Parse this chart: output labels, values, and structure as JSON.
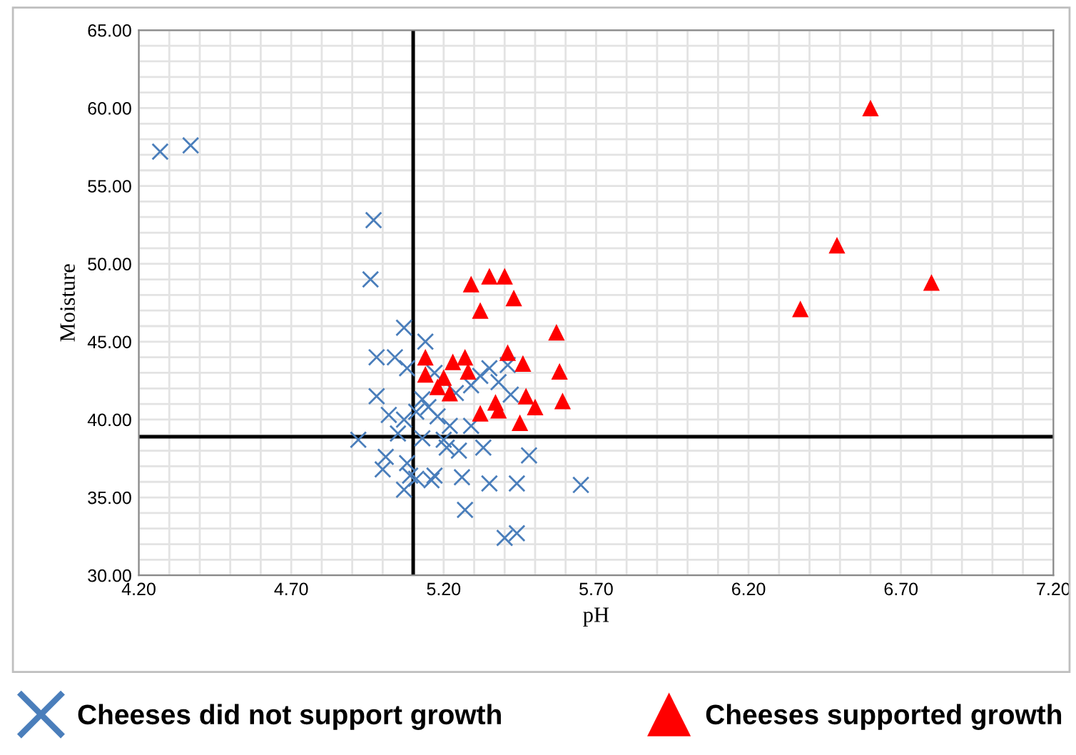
{
  "chart_data": {
    "type": "scatter",
    "xlabel": "pH",
    "ylabel": "Moisture",
    "xlim": [
      4.2,
      7.2
    ],
    "ylim": [
      30,
      65
    ],
    "xticks": [
      {
        "value": 4.2,
        "label": "4.20"
      },
      {
        "value": 4.7,
        "label": "4.70"
      },
      {
        "value": 5.2,
        "label": "5.20"
      },
      {
        "value": 5.7,
        "label": "5.70"
      },
      {
        "value": 6.2,
        "label": "6.20"
      },
      {
        "value": 6.7,
        "label": "6.70"
      },
      {
        "value": 7.2,
        "label": "7.20"
      }
    ],
    "yticks": [
      {
        "value": 30,
        "label": "30.00"
      },
      {
        "value": 35,
        "label": "35.00"
      },
      {
        "value": 40,
        "label": "40.00"
      },
      {
        "value": 45,
        "label": "45.00"
      },
      {
        "value": 50,
        "label": "50.00"
      },
      {
        "value": 55,
        "label": "55.00"
      },
      {
        "value": 60,
        "label": "60.00"
      },
      {
        "value": 65,
        "label": "65.00"
      }
    ],
    "grid": true,
    "legend": "bottom",
    "ref_lines": [
      {
        "axis": "x",
        "value": 5.1,
        "color": "#000000"
      },
      {
        "axis": "y",
        "value": 38.9,
        "color": "#000000"
      }
    ],
    "series": [
      {
        "name": "Cheeses did not support growth",
        "color": "#4a7ebb",
        "marker": "cross",
        "x": [
          4.27,
          4.37,
          4.97,
          4.96,
          5.07,
          5.14,
          4.98,
          5.04,
          5.08,
          5.28,
          5.41,
          5.35,
          5.32,
          4.98,
          5.17,
          5.21,
          5.29,
          5.38,
          5.42,
          5.13,
          5.24,
          5.02,
          5.07,
          5.11,
          5.15,
          5.18,
          5.22,
          5.29,
          5.05,
          4.92,
          5.13,
          5.2,
          5.25,
          5.33,
          5.48,
          5.21,
          5.01,
          5.0,
          5.08,
          5.09,
          5.11,
          5.07,
          5.17,
          5.16,
          5.26,
          5.35,
          5.44,
          5.65,
          5.27,
          5.4,
          5.44
        ],
        "values": [
          57.2,
          57.6,
          52.8,
          49.0,
          45.9,
          45.0,
          44.0,
          44.0,
          43.3,
          null,
          43.5,
          43.3,
          42.8,
          41.5,
          43.0,
          null,
          42.2,
          42.4,
          41.6,
          41.3,
          41.7,
          40.3,
          40.0,
          40.5,
          40.8,
          40.2,
          39.6,
          39.6,
          39.1,
          38.7,
          38.8,
          38.7,
          38.0,
          38.2,
          37.7,
          38.2,
          37.6,
          36.8,
          37.2,
          36.4,
          36.2,
          35.5,
          36.4,
          36.1,
          36.3,
          35.9,
          35.9,
          35.8,
          34.2,
          32.4,
          32.7
        ]
      },
      {
        "name": "Cheeses supported growth",
        "color": "#ff0000",
        "marker": "triangle",
        "x": [
          6.6,
          6.49,
          6.8,
          6.37,
          5.29,
          5.35,
          5.4,
          5.43,
          5.32,
          5.57,
          5.14,
          5.27,
          5.41,
          5.23,
          5.46,
          5.14,
          5.28,
          5.58,
          5.2,
          5.18,
          5.22,
          5.47,
          5.5,
          5.59,
          5.37,
          5.38,
          5.32,
          5.45
        ],
        "values": [
          60.0,
          51.2,
          48.8,
          47.1,
          48.7,
          49.2,
          49.2,
          47.8,
          47.0,
          45.6,
          44.0,
          44.0,
          44.3,
          43.7,
          43.6,
          42.9,
          43.1,
          43.1,
          42.7,
          42.1,
          41.7,
          41.5,
          40.8,
          41.2,
          41.1,
          40.6,
          40.4,
          39.8
        ]
      }
    ]
  }
}
